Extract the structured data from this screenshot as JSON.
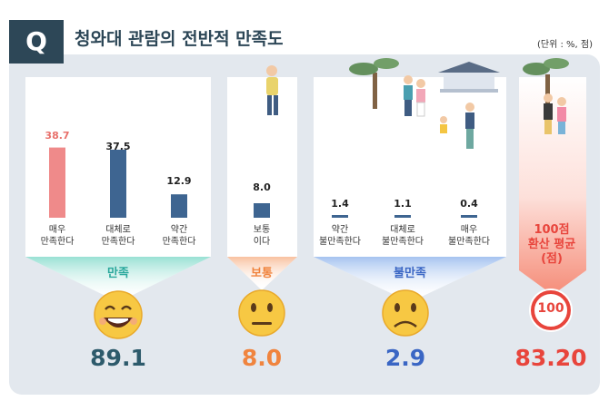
{
  "header": {
    "q": "Q",
    "title": "청와대 관람의 전반적 만족도",
    "unit": "(단위 : %, 점)"
  },
  "chart_data": {
    "type": "bar",
    "categories": [
      "매우\n만족한다",
      "대체로\n만족한다",
      "약간\n만족한다",
      "보통\n이다",
      "약간\n불만족한다",
      "대체로\n불만족한다",
      "매우\n불만족한다"
    ],
    "value_labels": [
      "38.7",
      "37.5",
      "12.9",
      "8.0",
      "1.4",
      "1.1",
      "0.4"
    ],
    "values": [
      38.7,
      37.5,
      12.9,
      8.0,
      1.4,
      1.1,
      0.4
    ],
    "ylim": [
      0,
      40
    ],
    "colors": [
      "#ef8a8a",
      "#3e6591",
      "#3e6591",
      "#3e6591",
      "#3e6591",
      "#3e6591",
      "#3e6591"
    ],
    "groups": [
      {
        "label": "만족",
        "total": "89.1",
        "color": "#2aa89c",
        "total_color": "#2d5a6b"
      },
      {
        "label": "보통",
        "total": "8.0",
        "color": "#f0843e",
        "total_color": "#f0843e"
      },
      {
        "label": "불만족",
        "total": "2.9",
        "color": "#3a66c4",
        "total_color": "#3a66c4"
      }
    ],
    "score": {
      "note": "100점\n환산 평균\n(점)",
      "badge": "100",
      "value": "83.20",
      "color": "#e8453c"
    }
  }
}
